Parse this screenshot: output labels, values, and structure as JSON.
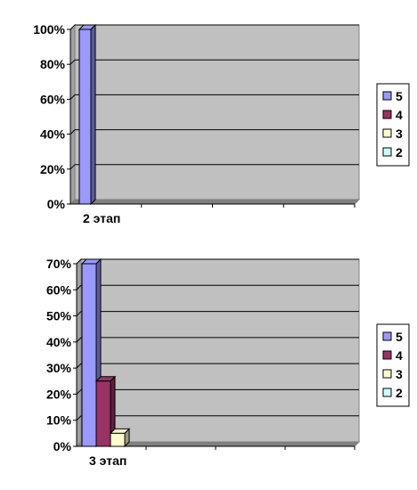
{
  "chart_data": [
    {
      "type": "bar",
      "categories": [
        "2 этап"
      ],
      "ylim": [
        0,
        100
      ],
      "yticks": [
        "0%",
        "20%",
        "40%",
        "60%",
        "80%",
        "100%"
      ],
      "legend_position": "right",
      "series": [
        {
          "name": "5",
          "values": [
            100
          ],
          "color": "#9999ff"
        },
        {
          "name": "4",
          "values": [
            0
          ],
          "color": "#993366"
        },
        {
          "name": "3",
          "values": [
            0
          ],
          "color": "#ffffcc"
        },
        {
          "name": "2",
          "values": [
            0
          ],
          "color": "#ccffff"
        }
      ]
    },
    {
      "type": "bar",
      "categories": [
        "3 этап"
      ],
      "ylim": [
        0,
        70
      ],
      "yticks": [
        "0%",
        "10%",
        "20%",
        "30%",
        "40%",
        "50%",
        "60%",
        "70%"
      ],
      "legend_position": "right",
      "series": [
        {
          "name": "5",
          "values": [
            70
          ],
          "color": "#9999ff"
        },
        {
          "name": "4",
          "values": [
            25
          ],
          "color": "#993366"
        },
        {
          "name": "3",
          "values": [
            5
          ],
          "color": "#ffffcc"
        },
        {
          "name": "2",
          "values": [
            0
          ],
          "color": "#ccffff"
        }
      ]
    }
  ],
  "colors": {
    "plot_area": "#c0c0c0",
    "floor": "#808080"
  }
}
